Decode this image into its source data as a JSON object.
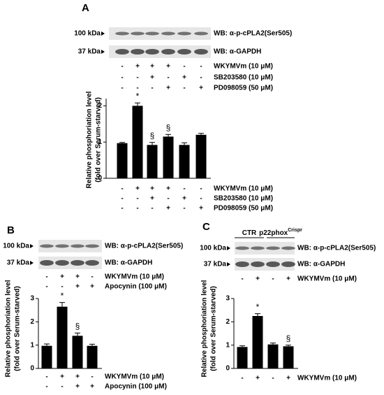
{
  "chart_data": [
    {
      "type": "bar",
      "panel": "A",
      "blots": [
        {
          "marker": "100 kDa",
          "label": "WB: α-p-cPLA2(Ser505)"
        },
        {
          "marker": "37 kDa",
          "label": "WB: α-GAPDH"
        }
      ],
      "treatments": [
        {
          "name": "WKYMVm (10 μM)",
          "signs": [
            "-",
            "+",
            "+",
            "+",
            "-",
            "-"
          ]
        },
        {
          "name": "SB203580 (10 μM)",
          "signs": [
            "-",
            "-",
            "+",
            "-",
            "+",
            "-"
          ]
        },
        {
          "name": "PD098059 (50 μM)",
          "signs": [
            "-",
            "-",
            "-",
            "+",
            "-",
            "+"
          ]
        }
      ],
      "ylabel": [
        "Relative phosphoriation level",
        "(fold over Serum-starved)"
      ],
      "values": [
        0.97,
        2.0,
        0.92,
        1.15,
        0.92,
        1.2
      ],
      "errors": [
        0.02,
        0.08,
        0.07,
        0.06,
        0.06,
        0.04
      ],
      "annotations": [
        null,
        "*",
        "§",
        "§",
        null,
        null
      ],
      "ylim": [
        0,
        2.2
      ],
      "yticks": [
        0,
        1,
        2
      ],
      "color": "#000000"
    },
    {
      "type": "bar",
      "panel": "B",
      "blots": [
        {
          "marker": "100 kDa",
          "label": "WB: α-p-cPLA2(Ser505)"
        },
        {
          "marker": "37 kDa",
          "label": "WB: α-GAPDH"
        }
      ],
      "treatments": [
        {
          "name": "WKYMVm (10 μM)",
          "signs": [
            "-",
            "+",
            "+",
            "-"
          ]
        },
        {
          "name": "Apocynin (100 μM)",
          "signs": [
            "-",
            "-",
            "+",
            "+"
          ]
        }
      ],
      "ylabel": [
        "Relative phosphoriation level",
        "(fold over Serum-starved)"
      ],
      "values": [
        0.97,
        2.65,
        1.4,
        0.97
      ],
      "errors": [
        0.08,
        0.18,
        0.12,
        0.07
      ],
      "annotations": [
        null,
        "*",
        "§",
        null
      ],
      "ylim": [
        0,
        3
      ],
      "yticks": [
        0,
        1,
        2,
        3
      ],
      "color": "#000000"
    },
    {
      "type": "bar",
      "panel": "C",
      "groups": [
        {
          "name": "CTR"
        },
        {
          "name": "p22phox",
          "sup": "Crispr"
        }
      ],
      "blots": [
        {
          "marker": "100 kDa",
          "label": "WB: α-p-cPLA2(Ser505)"
        },
        {
          "marker": "37 kDa",
          "label": "WB: α-GAPDH"
        }
      ],
      "treatments": [
        {
          "name": "WKYMVm (10 μM)",
          "signs": [
            "-",
            "+",
            "-",
            "+"
          ]
        }
      ],
      "ylabel": [
        "Relative phosphoriation level",
        "(fold over Serum-starved)"
      ],
      "values": [
        0.92,
        2.25,
        1.03,
        0.95
      ],
      "errors": [
        0.05,
        0.1,
        0.06,
        0.05
      ],
      "annotations": [
        null,
        "*",
        null,
        "§"
      ],
      "ylim": [
        0,
        3
      ],
      "yticks": [
        0,
        1,
        2,
        3
      ],
      "color": "#000000"
    }
  ]
}
